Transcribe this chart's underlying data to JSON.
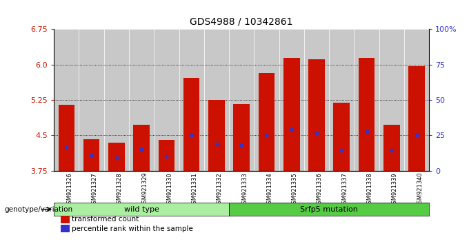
{
  "title": "GDS4988 / 10342861",
  "samples": [
    "GSM921326",
    "GSM921327",
    "GSM921328",
    "GSM921329",
    "GSM921330",
    "GSM921331",
    "GSM921332",
    "GSM921333",
    "GSM921334",
    "GSM921335",
    "GSM921336",
    "GSM921337",
    "GSM921338",
    "GSM921339",
    "GSM921340"
  ],
  "bar_tops": [
    5.15,
    4.42,
    4.35,
    4.72,
    4.4,
    5.72,
    5.25,
    5.17,
    5.82,
    6.15,
    6.12,
    5.2,
    6.14,
    4.72,
    5.97
  ],
  "blue_pos": [
    4.25,
    4.08,
    4.02,
    4.2,
    4.06,
    4.5,
    4.32,
    4.3,
    4.5,
    4.62,
    4.55,
    4.18,
    4.58,
    4.18,
    4.5
  ],
  "ymin": 3.75,
  "ymax": 6.75,
  "yticks_left": [
    3.75,
    4.5,
    5.25,
    6.0,
    6.75
  ],
  "yticks_right_vals": [
    0,
    25,
    50,
    75,
    100
  ],
  "dotted_lines": [
    6.0,
    5.25,
    4.5
  ],
  "bar_color": "#CC1100",
  "blue_color": "#3333CC",
  "bar_bottom": 3.75,
  "wildtype_count": 7,
  "wildtype_label": "wild type",
  "mutation_label": "Srfp5 mutation",
  "genotype_label": "genotype/variation",
  "legend_red": "transformed count",
  "legend_blue": "percentile rank within the sample",
  "group1_color": "#AAEEA0",
  "group2_color": "#55CC44",
  "tick_label_color_left": "#CC1100",
  "tick_label_color_right": "#3333CC",
  "bar_width": 0.65,
  "figsize": [
    6.8,
    3.54
  ],
  "dpi": 100
}
